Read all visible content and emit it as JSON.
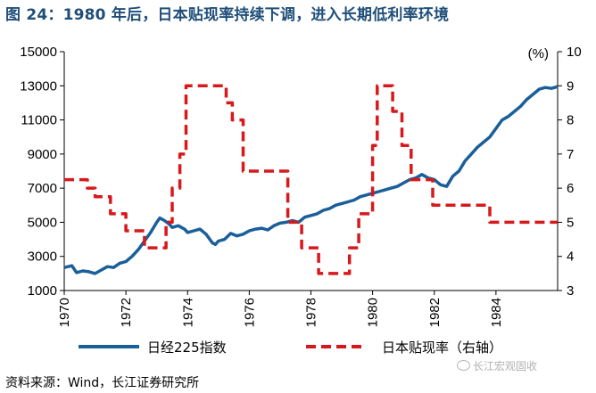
{
  "title": "图 24：1980 年后，日本贴现率持续下调，进入长期低利率环境",
  "source": "资料来源：Wind，长江证券研究所",
  "watermark": "长江宏观固收",
  "colors": {
    "nikkei": "#1a5f9a",
    "rate": "#d7191c",
    "title": "#1f4e79"
  },
  "chart_data": {
    "type": "line",
    "title": "",
    "x_label": "",
    "y_left_label": "",
    "y_right_label": "(%)",
    "x_range": [
      1970,
      1986
    ],
    "x_ticks": [
      "1970",
      "1972",
      "1974",
      "1976",
      "1978",
      "1980",
      "1982",
      "1984"
    ],
    "y_left_range": [
      1000,
      15000
    ],
    "y_left_ticks": [
      "15000",
      "13000",
      "11000",
      "9000",
      "7000",
      "5000",
      "3000",
      "1000"
    ],
    "y_right_range": [
      3,
      10
    ],
    "y_right_ticks": [
      "10",
      "9",
      "8",
      "7",
      "6",
      "5",
      "4",
      "3"
    ],
    "grid": false,
    "legend_position": "bottom",
    "series": [
      {
        "name": "日经225指数",
        "axis": "left",
        "style": "solid",
        "x": [
          1970.0,
          1970.25,
          1970.4,
          1970.6,
          1970.8,
          1971.0,
          1971.2,
          1971.4,
          1971.6,
          1971.8,
          1972.0,
          1972.2,
          1972.4,
          1972.6,
          1972.8,
          1973.0,
          1973.1,
          1973.25,
          1973.4,
          1973.5,
          1973.7,
          1973.9,
          1974.0,
          1974.2,
          1974.4,
          1974.6,
          1974.8,
          1974.9,
          1975.0,
          1975.2,
          1975.4,
          1975.6,
          1975.8,
          1976.0,
          1976.2,
          1976.4,
          1976.6,
          1976.8,
          1977.0,
          1977.2,
          1977.4,
          1977.6,
          1977.8,
          1978.0,
          1978.2,
          1978.4,
          1978.6,
          1978.8,
          1979.0,
          1979.2,
          1979.4,
          1979.6,
          1979.8,
          1980.0,
          1980.2,
          1980.4,
          1980.6,
          1980.8,
          1981.0,
          1981.2,
          1981.4,
          1981.6,
          1981.8,
          1982.0,
          1982.2,
          1982.4,
          1982.6,
          1982.8,
          1983.0,
          1983.2,
          1983.4,
          1983.6,
          1983.8,
          1984.0,
          1984.2,
          1984.4,
          1984.6,
          1984.8,
          1985.0,
          1985.2,
          1985.4,
          1985.6,
          1985.8,
          1986.0
        ],
        "values": [
          2350,
          2450,
          2050,
          2150,
          2100,
          2000,
          2200,
          2400,
          2350,
          2600,
          2700,
          3000,
          3400,
          3900,
          4400,
          5000,
          5250,
          5100,
          4900,
          4700,
          4800,
          4600,
          4400,
          4500,
          4600,
          4300,
          3800,
          3700,
          3900,
          4000,
          4350,
          4200,
          4300,
          4500,
          4600,
          4650,
          4550,
          4800,
          4950,
          5000,
          5100,
          5000,
          5300,
          5400,
          5500,
          5700,
          5800,
          6000,
          6100,
          6200,
          6300,
          6500,
          6600,
          6700,
          6800,
          6900,
          7000,
          7100,
          7300,
          7500,
          7600,
          7800,
          7600,
          7500,
          7200,
          7100,
          7700,
          8000,
          8600,
          9000,
          9400,
          9700,
          10000,
          10500,
          11000,
          11200,
          11500,
          11800,
          12200,
          12500,
          12800,
          12900,
          12850,
          12950
        ],
        "color": "#1a5f9a"
      },
      {
        "name": "日本贴现率（右轴）",
        "axis": "right",
        "style": "dashed",
        "x": [
          1970.0,
          1970.75,
          1970.75,
          1971.0,
          1971.0,
          1971.5,
          1971.5,
          1972.0,
          1972.0,
          1972.6,
          1972.6,
          1973.3,
          1973.3,
          1973.5,
          1973.5,
          1973.75,
          1973.75,
          1973.95,
          1973.95,
          1975.25,
          1975.25,
          1975.45,
          1975.45,
          1975.8,
          1975.8,
          1977.25,
          1977.25,
          1977.7,
          1977.7,
          1978.25,
          1978.25,
          1979.25,
          1979.25,
          1979.55,
          1979.55,
          1980.0,
          1980.0,
          1980.15,
          1980.15,
          1980.65,
          1980.65,
          1980.95,
          1980.95,
          1981.25,
          1981.25,
          1981.95,
          1981.95,
          1983.8,
          1983.8,
          1986.0
        ],
        "values": [
          6.25,
          6.25,
          6.0,
          6.0,
          5.75,
          5.75,
          5.25,
          5.25,
          4.75,
          4.75,
          4.25,
          4.25,
          5.0,
          5.0,
          6.0,
          6.0,
          7.0,
          7.0,
          9.0,
          9.0,
          8.5,
          8.5,
          8.0,
          8.0,
          6.5,
          6.5,
          5.0,
          5.0,
          4.25,
          4.25,
          3.5,
          3.5,
          4.25,
          4.25,
          5.25,
          5.25,
          7.25,
          7.25,
          9.0,
          9.0,
          8.25,
          8.25,
          7.25,
          7.25,
          6.25,
          6.25,
          5.5,
          5.5,
          5.0,
          5.0
        ],
        "color": "#d7191c"
      }
    ]
  }
}
